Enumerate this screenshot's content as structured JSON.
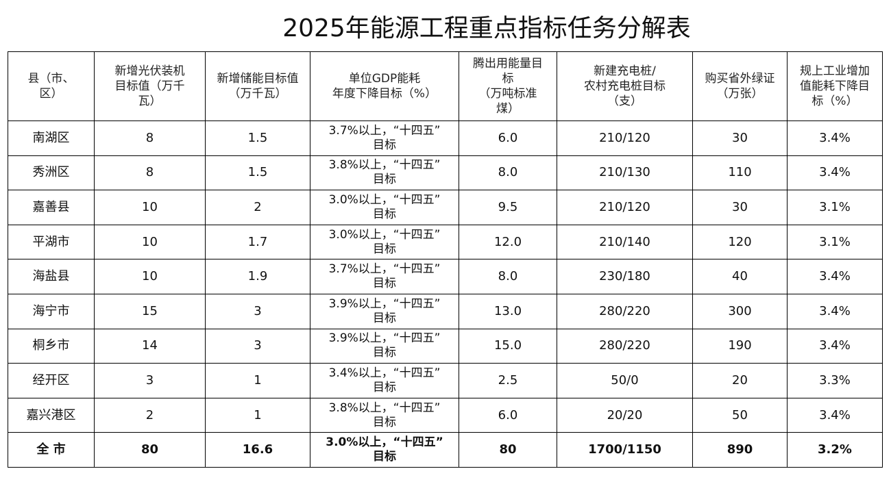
{
  "title": "2025年能源工程重点指标任务分解表",
  "columns": [
    "县（市、\n区）",
    "新增光伏装机\n目标值（万千\n瓦）",
    "新增储能目标值\n（万千瓦）",
    "单位GDP能耗\n年度下降目标（%）",
    "腾出用能量目\n标\n（万吨标准\n煤）",
    "新建充电桩/\n农村充电桩目标\n（支）",
    "购买省外绿证\n（万张）",
    "规上工业增加\n值能耗下降目\n标（%）"
  ],
  "rows": [
    {
      "region": "南湖区",
      "pv": "8",
      "storage": "1.5",
      "gdp_line1": "3.7%以上，“十四五”",
      "gdp_line2": "目标",
      "energy": "6.0",
      "charger": "210/120",
      "green": "30",
      "industrial": "3.4%"
    },
    {
      "region": "秀洲区",
      "pv": "8",
      "storage": "1.5",
      "gdp_line1": "3.8%以上，“十四五”",
      "gdp_line2": "目标",
      "energy": "8.0",
      "charger": "210/130",
      "green": "110",
      "industrial": "3.4%"
    },
    {
      "region": "嘉善县",
      "pv": "10",
      "storage": "2",
      "gdp_line1": "3.0%以上，“十四五”",
      "gdp_line2": "目标",
      "energy": "9.5",
      "charger": "210/120",
      "green": "30",
      "industrial": "3.1%"
    },
    {
      "region": "平湖市",
      "pv": "10",
      "storage": "1.7",
      "gdp_line1": "3.0%以上，“十四五”",
      "gdp_line2": "目标",
      "energy": "12.0",
      "charger": "210/140",
      "green": "120",
      "industrial": "3.1%"
    },
    {
      "region": "海盐县",
      "pv": "10",
      "storage": "1.9",
      "gdp_line1": "3.7%以上，“十四五”",
      "gdp_line2": "目标",
      "energy": "8.0",
      "charger": "230/180",
      "green": "40",
      "industrial": "3.4%"
    },
    {
      "region": "海宁市",
      "pv": "15",
      "storage": "3",
      "gdp_line1": "3.9%以上，“十四五”",
      "gdp_line2": "目标",
      "energy": "13.0",
      "charger": "280/220",
      "green": "300",
      "industrial": "3.4%"
    },
    {
      "region": "桐乡市",
      "pv": "14",
      "storage": "3",
      "gdp_line1": "3.9%以上，“十四五”",
      "gdp_line2": "目标",
      "energy": "15.0",
      "charger": "280/220",
      "green": "190",
      "industrial": "3.4%"
    },
    {
      "region": "经开区",
      "pv": "3",
      "storage": "1",
      "gdp_line1": "3.4%以上，“十四五”",
      "gdp_line2": "目标",
      "energy": "2.5",
      "charger": "50/0",
      "green": "20",
      "industrial": "3.3%"
    },
    {
      "region": "嘉兴港区",
      "pv": "2",
      "storage": "1",
      "gdp_line1": "3.8%以上，“十四五”",
      "gdp_line2": "目标",
      "energy": "6.0",
      "charger": "20/20",
      "green": "50",
      "industrial": "3.4%"
    }
  ],
  "total": {
    "region": "全 市",
    "pv": "80",
    "storage": "16.6",
    "gdp_line1": "3.0%以上，“十四五”",
    "gdp_line2": "目标",
    "energy": "80",
    "charger": "1700/1150",
    "green": "890",
    "industrial": "3.2%"
  }
}
